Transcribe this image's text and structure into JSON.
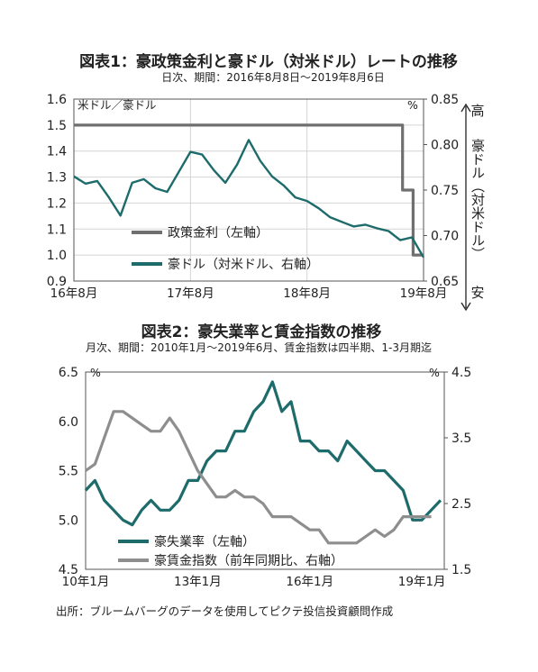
{
  "colors": {
    "teal": "#1e6b6b",
    "gray": "#6f6f6f",
    "lightgray": "#8e8e8e"
  },
  "source": "出所：ブルームバーグのデータを使用してピクテ投信投資顧問作成",
  "chart_data": [
    {
      "type": "line",
      "title": "図表1：豪政策金利と豪ドル（対米ドル）レートの推移",
      "subtitle": "日次、期間：2016年8月8日～2019年8月6日",
      "ylabel_left": "米ドル／豪ドル",
      "ylabel_right": "%",
      "right_side_label": {
        "top": "高",
        "middle": "豪ドル（対米ドル）",
        "bottom": "安"
      },
      "x_ticks": [
        "16年8月",
        "17年8月",
        "18年8月",
        "19年8月"
      ],
      "ylim_left": [
        0.9,
        1.6
      ],
      "yticks_left": [
        "0.9",
        "1.0",
        "1.1",
        "1.2",
        "1.3",
        "1.4",
        "1.5",
        "1.6"
      ],
      "ylim_right": [
        0.65,
        0.85
      ],
      "yticks_right": [
        "0.65",
        "0.70",
        "0.75",
        "0.80",
        "0.85"
      ],
      "grid": true,
      "legend_position": "bottom-center",
      "series": [
        {
          "name": "政策金利（左軸）",
          "axis": "left",
          "color": "#6f6f6f",
          "step": true,
          "x": [
            2016.6,
            2019.42,
            2019.42,
            2019.51,
            2019.51,
            2019.6
          ],
          "values": [
            1.5,
            1.5,
            1.25,
            1.25,
            1.0,
            1.0
          ]
        },
        {
          "name": "豪ドル（対米ドル、右軸）",
          "axis": "right",
          "color": "#1e6b6b",
          "x": [
            2016.6,
            2016.7,
            2016.8,
            2016.9,
            2017.0,
            2017.1,
            2017.2,
            2017.3,
            2017.4,
            2017.5,
            2017.6,
            2017.7,
            2017.8,
            2017.9,
            2018.0,
            2018.1,
            2018.2,
            2018.3,
            2018.4,
            2018.5,
            2018.6,
            2018.7,
            2018.8,
            2018.9,
            2019.0,
            2019.1,
            2019.2,
            2019.3,
            2019.4,
            2019.5,
            2019.6
          ],
          "values": [
            0.765,
            0.757,
            0.76,
            0.742,
            0.722,
            0.758,
            0.762,
            0.752,
            0.748,
            0.77,
            0.792,
            0.789,
            0.772,
            0.758,
            0.778,
            0.805,
            0.782,
            0.765,
            0.755,
            0.742,
            0.738,
            0.73,
            0.72,
            0.715,
            0.71,
            0.712,
            0.708,
            0.705,
            0.695,
            0.698,
            0.676
          ]
        }
      ]
    },
    {
      "type": "line",
      "title": "図表2：豪失業率と賃金指数の推移",
      "subtitle": "月次、期間：2010年1月～2019年6月、賃金指数は四半期、1-3月期迄",
      "ylabel_left": "%",
      "ylabel_right": "%",
      "x_ticks": [
        "10年1月",
        "13年1月",
        "16年1月",
        "19年1月"
      ],
      "ylim_left": [
        4.5,
        6.5
      ],
      "yticks_left": [
        "4.5",
        "5.0",
        "5.5",
        "6.0",
        "6.5"
      ],
      "ylim_right": [
        1.5,
        4.5
      ],
      "yticks_right": [
        "1.5",
        "2.5",
        "3.5",
        "4.5"
      ],
      "grid": false,
      "legend_position": "bottom-left",
      "series": [
        {
          "name": "豪失業率（左軸）",
          "axis": "left",
          "color": "#1e6b6b",
          "x": [
            2010.0,
            2010.25,
            2010.5,
            2010.75,
            2011.0,
            2011.25,
            2011.5,
            2011.75,
            2012.0,
            2012.25,
            2012.5,
            2012.75,
            2013.0,
            2013.25,
            2013.5,
            2013.75,
            2014.0,
            2014.25,
            2014.5,
            2014.75,
            2015.0,
            2015.25,
            2015.5,
            2015.75,
            2016.0,
            2016.25,
            2016.5,
            2016.75,
            2017.0,
            2017.25,
            2017.5,
            2017.75,
            2018.0,
            2018.25,
            2018.5,
            2018.75,
            2019.0,
            2019.25,
            2019.5
          ],
          "values": [
            5.3,
            5.4,
            5.2,
            5.1,
            5.0,
            4.95,
            5.1,
            5.2,
            5.1,
            5.1,
            5.2,
            5.4,
            5.4,
            5.6,
            5.7,
            5.7,
            5.9,
            5.9,
            6.1,
            6.2,
            6.4,
            6.1,
            6.2,
            5.8,
            5.8,
            5.7,
            5.7,
            5.6,
            5.8,
            5.7,
            5.6,
            5.5,
            5.5,
            5.4,
            5.3,
            5.0,
            5.0,
            5.1,
            5.2
          ]
        },
        {
          "name": "豪賃金指数（前年同期比、右軸）",
          "axis": "right",
          "color": "#8e8e8e",
          "x": [
            2010.0,
            2010.25,
            2010.5,
            2010.75,
            2011.0,
            2011.25,
            2011.5,
            2011.75,
            2012.0,
            2012.25,
            2012.5,
            2012.75,
            2013.0,
            2013.25,
            2013.5,
            2013.75,
            2014.0,
            2014.25,
            2014.5,
            2014.75,
            2015.0,
            2015.25,
            2015.5,
            2015.75,
            2016.0,
            2016.25,
            2016.5,
            2016.75,
            2017.0,
            2017.25,
            2017.5,
            2017.75,
            2018.0,
            2018.25,
            2018.5,
            2018.75,
            2019.0,
            2019.25
          ],
          "values": [
            3.0,
            3.1,
            3.5,
            3.9,
            3.9,
            3.8,
            3.7,
            3.6,
            3.6,
            3.8,
            3.6,
            3.3,
            3.0,
            2.8,
            2.6,
            2.6,
            2.7,
            2.6,
            2.6,
            2.5,
            2.3,
            2.3,
            2.3,
            2.2,
            2.1,
            2.1,
            1.9,
            1.9,
            1.9,
            1.9,
            2.0,
            2.1,
            2.0,
            2.1,
            2.3,
            2.3,
            2.3,
            2.3
          ]
        }
      ]
    }
  ]
}
